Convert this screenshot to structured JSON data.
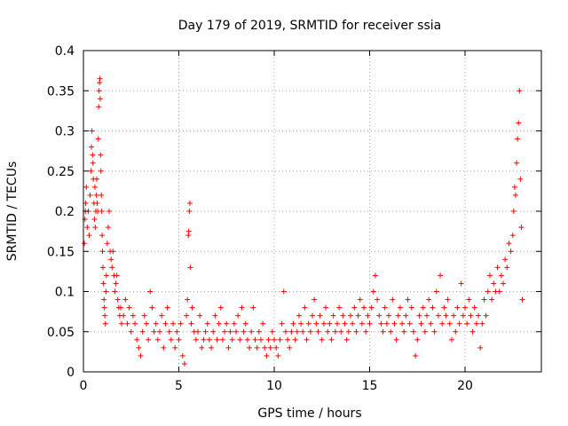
{
  "chart_data": {
    "type": "scatter",
    "title": "Day 179 of 2019, SRMTID for receiver ssia",
    "xlabel": "GPS time / hours",
    "ylabel": "SRMTID / TECUs",
    "xlim": [
      0,
      24
    ],
    "ylim": [
      0,
      0.4
    ],
    "x_ticks": [
      0,
      5,
      10,
      15,
      20
    ],
    "y_ticks": [
      0,
      0.05,
      0.1,
      0.15,
      0.2,
      0.25,
      0.3,
      0.35,
      0.4
    ],
    "x_tick_labels": [
      "0",
      "5",
      "10",
      "15",
      "20"
    ],
    "y_tick_labels": [
      "0",
      "0.05",
      "0.1",
      "0.15",
      "0.2",
      "0.25",
      "0.3",
      "0.35",
      "0.4"
    ],
    "grid": true,
    "marker": "plus",
    "color": "#ff0000",
    "points": [
      [
        0.05,
        0.16
      ],
      [
        0.08,
        0.19
      ],
      [
        0.1,
        0.2
      ],
      [
        0.12,
        0.21
      ],
      [
        0.15,
        0.23
      ],
      [
        0.2,
        0.18
      ],
      [
        0.25,
        0.2
      ],
      [
        0.3,
        0.17
      ],
      [
        0.35,
        0.22
      ],
      [
        0.4,
        0.25
      ],
      [
        0.42,
        0.28
      ],
      [
        0.45,
        0.3
      ],
      [
        0.48,
        0.27
      ],
      [
        0.5,
        0.26
      ],
      [
        0.52,
        0.24
      ],
      [
        0.55,
        0.21
      ],
      [
        0.58,
        0.19
      ],
      [
        0.6,
        0.23
      ],
      [
        0.62,
        0.18
      ],
      [
        0.65,
        0.2
      ],
      [
        0.68,
        0.22
      ],
      [
        0.7,
        0.24
      ],
      [
        0.72,
        0.21
      ],
      [
        0.75,
        0.2
      ],
      [
        0.78,
        0.29
      ],
      [
        0.8,
        0.33
      ],
      [
        0.82,
        0.35
      ],
      [
        0.84,
        0.36
      ],
      [
        0.86,
        0.365
      ],
      [
        0.88,
        0.34
      ],
      [
        0.9,
        0.27
      ],
      [
        0.92,
        0.25
      ],
      [
        0.94,
        0.22
      ],
      [
        0.96,
        0.2
      ],
      [
        0.98,
        0.17
      ],
      [
        1.0,
        0.15
      ],
      [
        1.02,
        0.13
      ],
      [
        1.05,
        0.11
      ],
      [
        1.08,
        0.09
      ],
      [
        1.1,
        0.08
      ],
      [
        1.12,
        0.07
      ],
      [
        1.15,
        0.06
      ],
      [
        1.18,
        0.1
      ],
      [
        1.2,
        0.12
      ],
      [
        1.25,
        0.16
      ],
      [
        1.3,
        0.18
      ],
      [
        1.35,
        0.2
      ],
      [
        1.4,
        0.15
      ],
      [
        1.45,
        0.14
      ],
      [
        1.5,
        0.13
      ],
      [
        1.55,
        0.15
      ],
      [
        1.6,
        0.12
      ],
      [
        1.65,
        0.1
      ],
      [
        1.7,
        0.11
      ],
      [
        1.75,
        0.12
      ],
      [
        1.8,
        0.09
      ],
      [
        1.85,
        0.08
      ],
      [
        1.9,
        0.07
      ],
      [
        1.95,
        0.08
      ],
      [
        2.0,
        0.06
      ],
      [
        2.1,
        0.07
      ],
      [
        2.2,
        0.09
      ],
      [
        2.3,
        0.06
      ],
      [
        2.4,
        0.08
      ],
      [
        2.5,
        0.05
      ],
      [
        2.6,
        0.07
      ],
      [
        2.7,
        0.06
      ],
      [
        2.8,
        0.04
      ],
      [
        2.9,
        0.03
      ],
      [
        3.0,
        0.02
      ],
      [
        3.1,
        0.05
      ],
      [
        3.2,
        0.07
      ],
      [
        3.3,
        0.06
      ],
      [
        3.4,
        0.04
      ],
      [
        3.5,
        0.1
      ],
      [
        3.6,
        0.08
      ],
      [
        3.7,
        0.05
      ],
      [
        3.8,
        0.06
      ],
      [
        3.9,
        0.04
      ],
      [
        4.0,
        0.05
      ],
      [
        4.1,
        0.07
      ],
      [
        4.2,
        0.03
      ],
      [
        4.3,
        0.06
      ],
      [
        4.4,
        0.08
      ],
      [
        4.5,
        0.05
      ],
      [
        4.6,
        0.04
      ],
      [
        4.7,
        0.06
      ],
      [
        4.8,
        0.03
      ],
      [
        4.9,
        0.05
      ],
      [
        5.0,
        0.04
      ],
      [
        5.1,
        0.06
      ],
      [
        5.2,
        0.02
      ],
      [
        5.3,
        0.01
      ],
      [
        5.4,
        0.07
      ],
      [
        5.45,
        0.09
      ],
      [
        5.5,
        0.17
      ],
      [
        5.52,
        0.175
      ],
      [
        5.55,
        0.2
      ],
      [
        5.58,
        0.21
      ],
      [
        5.6,
        0.13
      ],
      [
        5.65,
        0.06
      ],
      [
        5.7,
        0.08
      ],
      [
        5.8,
        0.05
      ],
      [
        5.9,
        0.04
      ],
      [
        6.0,
        0.05
      ],
      [
        6.1,
        0.07
      ],
      [
        6.2,
        0.03
      ],
      [
        6.3,
        0.04
      ],
      [
        6.4,
        0.05
      ],
      [
        6.5,
        0.06
      ],
      [
        6.6,
        0.04
      ],
      [
        6.7,
        0.03
      ],
      [
        6.8,
        0.05
      ],
      [
        6.9,
        0.07
      ],
      [
        7.0,
        0.04
      ],
      [
        7.1,
        0.06
      ],
      [
        7.2,
        0.08
      ],
      [
        7.3,
        0.04
      ],
      [
        7.4,
        0.05
      ],
      [
        7.5,
        0.06
      ],
      [
        7.6,
        0.03
      ],
      [
        7.7,
        0.05
      ],
      [
        7.8,
        0.04
      ],
      [
        7.9,
        0.06
      ],
      [
        8.0,
        0.05
      ],
      [
        8.1,
        0.07
      ],
      [
        8.2,
        0.04
      ],
      [
        8.3,
        0.08
      ],
      [
        8.4,
        0.05
      ],
      [
        8.5,
        0.06
      ],
      [
        8.6,
        0.04
      ],
      [
        8.7,
        0.03
      ],
      [
        8.8,
        0.05
      ],
      [
        8.9,
        0.08
      ],
      [
        9.0,
        0.04
      ],
      [
        9.1,
        0.03
      ],
      [
        9.2,
        0.05
      ],
      [
        9.3,
        0.04
      ],
      [
        9.4,
        0.06
      ],
      [
        9.5,
        0.03
      ],
      [
        9.6,
        0.02
      ],
      [
        9.7,
        0.04
      ],
      [
        9.8,
        0.03
      ],
      [
        9.9,
        0.05
      ],
      [
        10.0,
        0.04
      ],
      [
        10.1,
        0.03
      ],
      [
        10.2,
        0.02
      ],
      [
        10.3,
        0.04
      ],
      [
        10.4,
        0.06
      ],
      [
        10.5,
        0.1
      ],
      [
        10.6,
        0.05
      ],
      [
        10.7,
        0.04
      ],
      [
        10.8,
        0.03
      ],
      [
        10.9,
        0.05
      ],
      [
        11.0,
        0.06
      ],
      [
        11.1,
        0.04
      ],
      [
        11.2,
        0.05
      ],
      [
        11.3,
        0.07
      ],
      [
        11.4,
        0.06
      ],
      [
        11.5,
        0.05
      ],
      [
        11.6,
        0.08
      ],
      [
        11.7,
        0.04
      ],
      [
        11.8,
        0.06
      ],
      [
        11.9,
        0.05
      ],
      [
        12.0,
        0.07
      ],
      [
        12.1,
        0.09
      ],
      [
        12.2,
        0.06
      ],
      [
        12.3,
        0.05
      ],
      [
        12.4,
        0.07
      ],
      [
        12.5,
        0.04
      ],
      [
        12.6,
        0.06
      ],
      [
        12.7,
        0.08
      ],
      [
        12.8,
        0.05
      ],
      [
        12.9,
        0.06
      ],
      [
        13.0,
        0.04
      ],
      [
        13.1,
        0.07
      ],
      [
        13.2,
        0.05
      ],
      [
        13.3,
        0.06
      ],
      [
        13.4,
        0.08
      ],
      [
        13.5,
        0.05
      ],
      [
        13.6,
        0.07
      ],
      [
        13.7,
        0.06
      ],
      [
        13.8,
        0.04
      ],
      [
        13.9,
        0.05
      ],
      [
        14.0,
        0.07
      ],
      [
        14.1,
        0.06
      ],
      [
        14.2,
        0.08
      ],
      [
        14.3,
        0.05
      ],
      [
        14.4,
        0.07
      ],
      [
        14.5,
        0.09
      ],
      [
        14.6,
        0.06
      ],
      [
        14.7,
        0.08
      ],
      [
        14.8,
        0.05
      ],
      [
        14.9,
        0.07
      ],
      [
        15.0,
        0.06
      ],
      [
        15.1,
        0.08
      ],
      [
        15.2,
        0.1
      ],
      [
        15.3,
        0.12
      ],
      [
        15.4,
        0.09
      ],
      [
        15.5,
        0.07
      ],
      [
        15.6,
        0.06
      ],
      [
        15.7,
        0.05
      ],
      [
        15.8,
        0.08
      ],
      [
        15.9,
        0.06
      ],
      [
        16.0,
        0.07
      ],
      [
        16.1,
        0.05
      ],
      [
        16.2,
        0.09
      ],
      [
        16.3,
        0.06
      ],
      [
        16.4,
        0.04
      ],
      [
        16.5,
        0.07
      ],
      [
        16.6,
        0.08
      ],
      [
        16.7,
        0.06
      ],
      [
        16.8,
        0.05
      ],
      [
        16.9,
        0.07
      ],
      [
        17.0,
        0.09
      ],
      [
        17.1,
        0.06
      ],
      [
        17.2,
        0.08
      ],
      [
        17.3,
        0.05
      ],
      [
        17.4,
        0.02
      ],
      [
        17.5,
        0.04
      ],
      [
        17.6,
        0.07
      ],
      [
        17.7,
        0.06
      ],
      [
        17.8,
        0.08
      ],
      [
        17.9,
        0.05
      ],
      [
        18.0,
        0.07
      ],
      [
        18.1,
        0.09
      ],
      [
        18.2,
        0.06
      ],
      [
        18.3,
        0.08
      ],
      [
        18.4,
        0.05
      ],
      [
        18.5,
        0.1
      ],
      [
        18.6,
        0.07
      ],
      [
        18.7,
        0.12
      ],
      [
        18.8,
        0.06
      ],
      [
        18.9,
        0.08
      ],
      [
        19.0,
        0.07
      ],
      [
        19.1,
        0.09
      ],
      [
        19.2,
        0.06
      ],
      [
        19.3,
        0.04
      ],
      [
        19.4,
        0.07
      ],
      [
        19.5,
        0.05
      ],
      [
        19.6,
        0.08
      ],
      [
        19.7,
        0.06
      ],
      [
        19.8,
        0.11
      ],
      [
        19.9,
        0.07
      ],
      [
        20.0,
        0.08
      ],
      [
        20.1,
        0.06
      ],
      [
        20.2,
        0.09
      ],
      [
        20.3,
        0.07
      ],
      [
        20.4,
        0.05
      ],
      [
        20.5,
        0.08
      ],
      [
        20.6,
        0.06
      ],
      [
        20.7,
        0.07
      ],
      [
        20.8,
        0.03
      ],
      [
        20.9,
        0.06
      ],
      [
        21.0,
        0.09
      ],
      [
        21.1,
        0.07
      ],
      [
        21.2,
        0.1
      ],
      [
        21.3,
        0.12
      ],
      [
        21.4,
        0.09
      ],
      [
        21.5,
        0.11
      ],
      [
        21.6,
        0.1
      ],
      [
        21.7,
        0.13
      ],
      [
        21.8,
        0.1
      ],
      [
        21.9,
        0.12
      ],
      [
        22.0,
        0.11
      ],
      [
        22.1,
        0.14
      ],
      [
        22.2,
        0.13
      ],
      [
        22.3,
        0.16
      ],
      [
        22.4,
        0.15
      ],
      [
        22.5,
        0.17
      ],
      [
        22.55,
        0.2
      ],
      [
        22.6,
        0.23
      ],
      [
        22.65,
        0.22
      ],
      [
        22.7,
        0.26
      ],
      [
        22.75,
        0.29
      ],
      [
        22.8,
        0.31
      ],
      [
        22.85,
        0.35
      ],
      [
        22.9,
        0.24
      ],
      [
        22.95,
        0.18
      ],
      [
        23.0,
        0.09
      ]
    ]
  }
}
